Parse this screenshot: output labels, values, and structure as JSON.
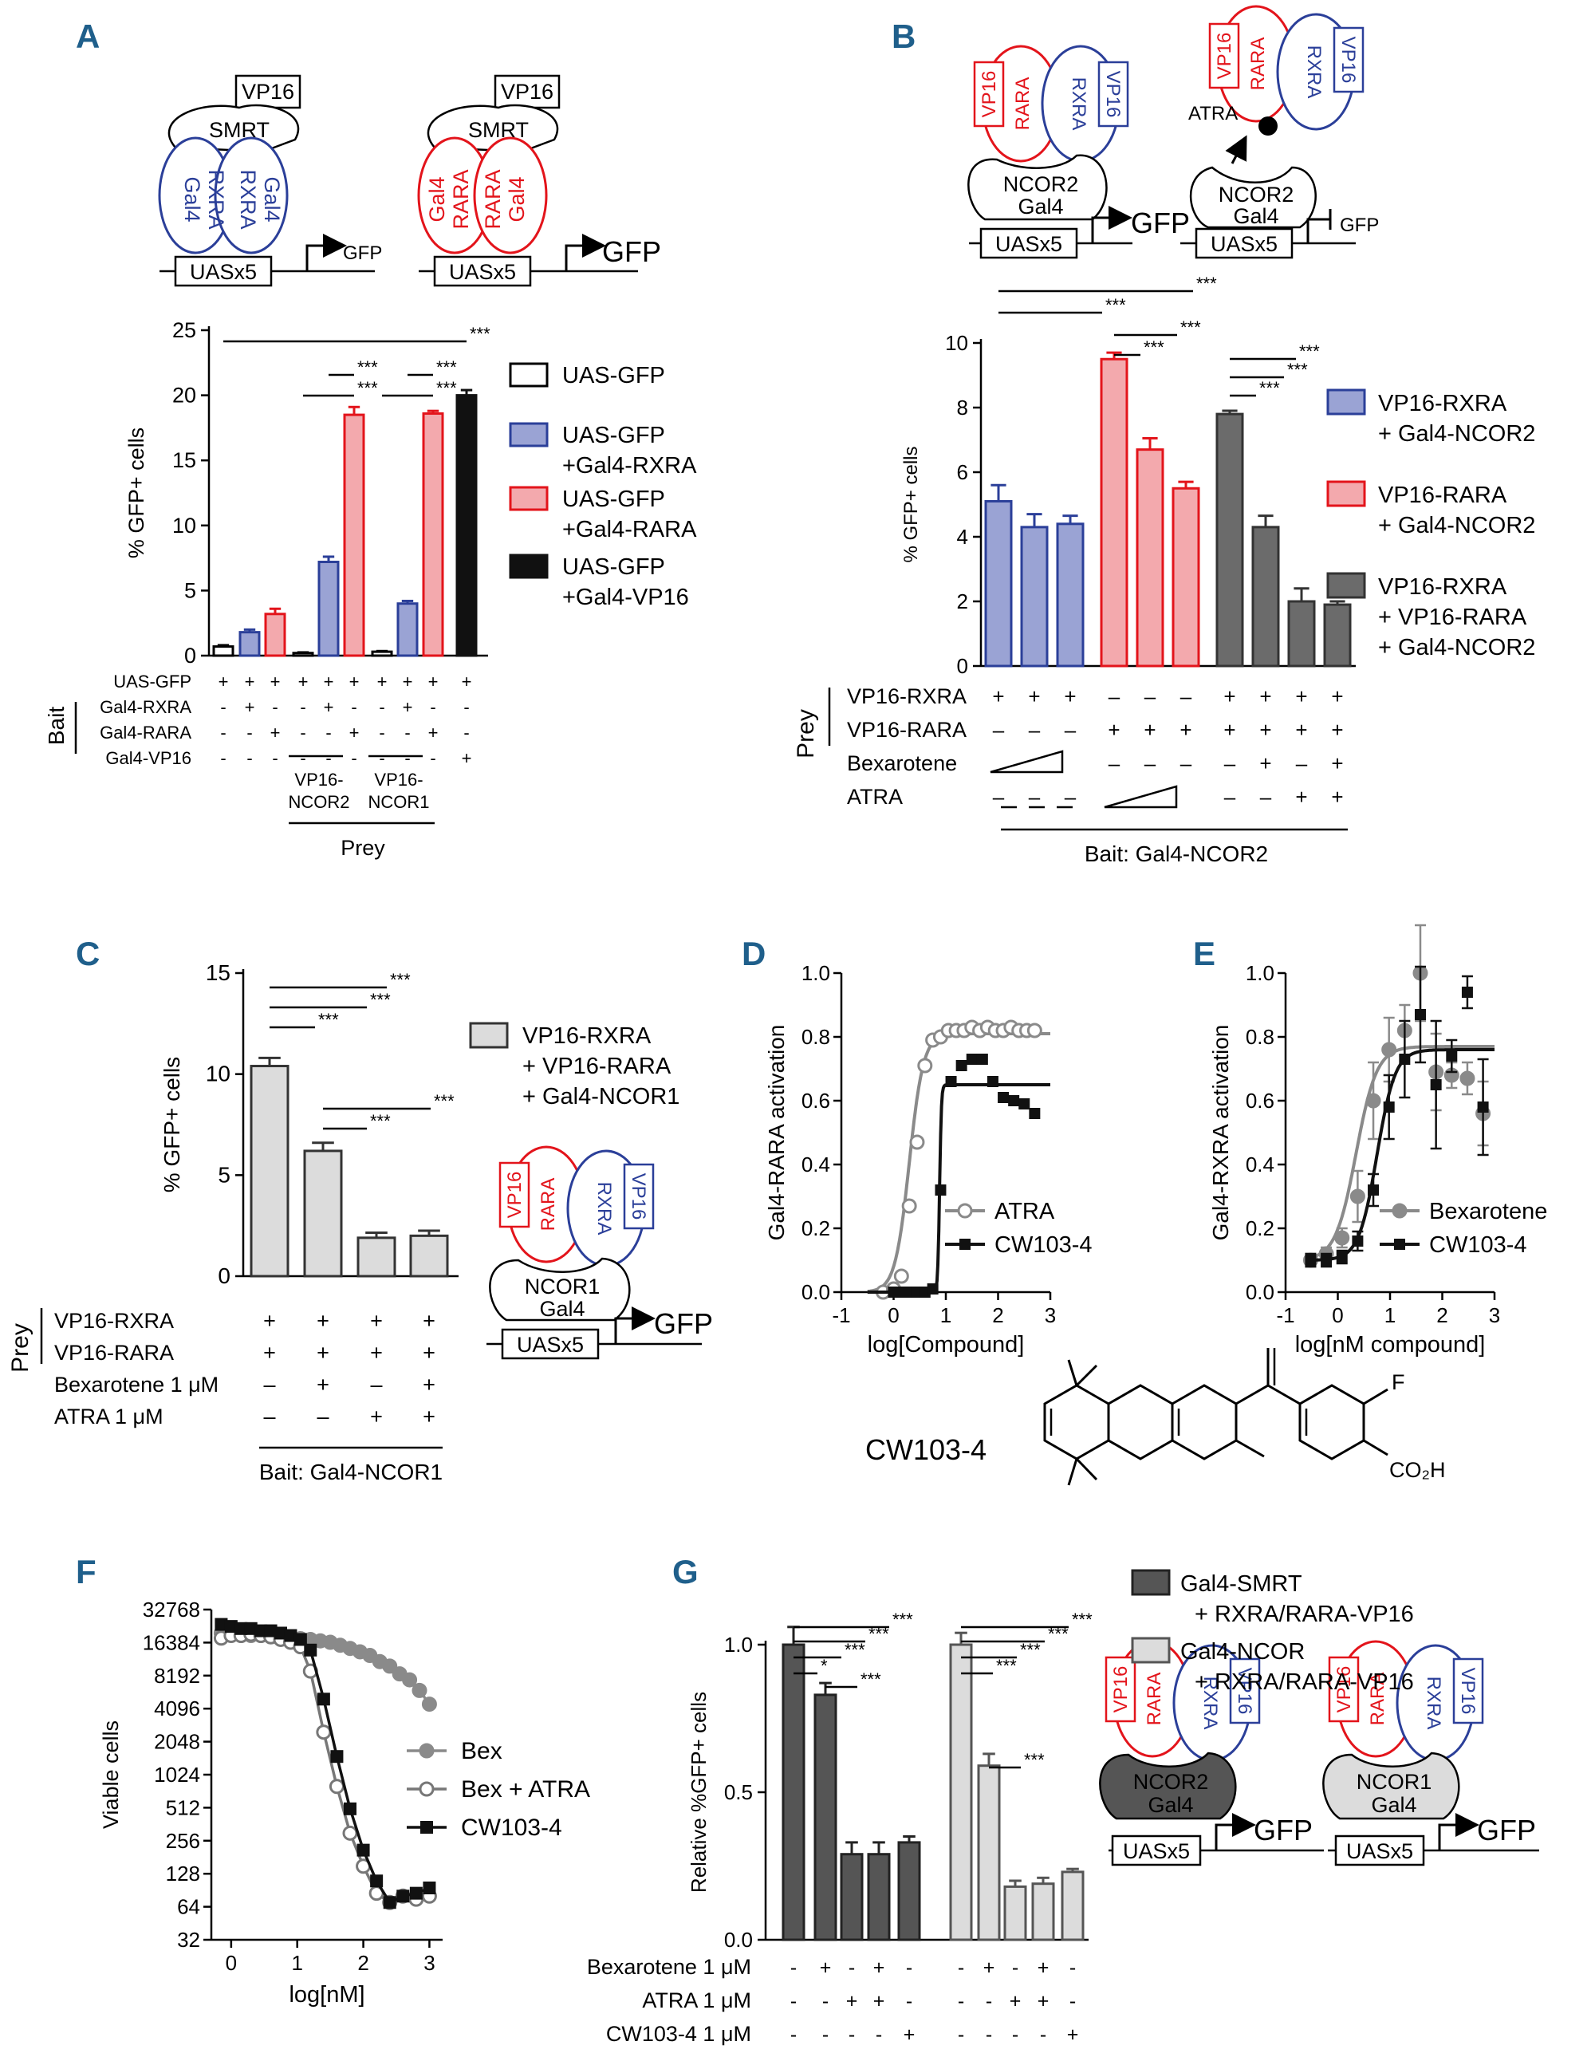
{
  "panel_labels": [
    "A",
    "B",
    "C",
    "D",
    "E",
    "F",
    "G"
  ],
  "diagram_text": {
    "vp16": "VP16",
    "smrt": "SMRT",
    "gal4": "Gal4",
    "rxra": "RXRA",
    "rara": "RARA",
    "ncor2": "NCOR2",
    "ncor1": "NCOR1",
    "uas": "UASx5",
    "gfp": "GFP",
    "atra": "ATRA"
  },
  "sig": {
    "three": "***",
    "one": "*"
  },
  "colors": {
    "blue": "#2b3f99",
    "blue_fill": "#9aa3d4",
    "red": "#e3141b",
    "red_fill": "#f3a9ad",
    "black": "#111111",
    "dark_gray": "#6b6b6b",
    "mid_gray": "#8a8a8a",
    "light_gray": "#dcdcdc",
    "panel_label": "#1f5f8b"
  },
  "chart_data": [
    {
      "panel": "A",
      "type": "bar",
      "ylabel": "% GFP+ cells",
      "ylim": [
        0,
        25
      ],
      "yticks": [
        "0",
        "5",
        "10",
        "15",
        "20",
        "25"
      ],
      "values": [
        0.7,
        1.8,
        3.2,
        0.2,
        7.2,
        18.5,
        0.3,
        4.0,
        18.6,
        20.0
      ],
      "errors": [
        0.1,
        0.2,
        0.4,
        0.05,
        0.4,
        0.6,
        0.05,
        0.2,
        0.2,
        0.4
      ],
      "legend": [
        "UAS-GFP",
        "UAS-GFP\n+Gal4-RXRA",
        "UAS-GFP\n+Gal4-RARA",
        "UAS-GFP\n+Gal4-VP16"
      ],
      "row_labels": [
        "UAS-GFP",
        "Gal4-RXRA",
        "Gal4-RARA",
        "Gal4-VP16"
      ],
      "rows": [
        [
          "+",
          "+",
          "+",
          "+",
          "+",
          "+",
          "+",
          "+",
          "+",
          "+"
        ],
        [
          "-",
          "+",
          "-",
          "-",
          "+",
          "-",
          "-",
          "+",
          "-",
          "-"
        ],
        [
          "-",
          "-",
          "+",
          "-",
          "-",
          "+",
          "-",
          "-",
          "+",
          "-"
        ],
        [
          "-",
          "-",
          "-",
          "-",
          "-",
          "-",
          "-",
          "-",
          "-",
          "+"
        ]
      ],
      "bait_label": "Bait",
      "prey_groups": [
        "VP16-\nNCOR2",
        "VP16-\nNCOR1"
      ],
      "prey_label": "Prey"
    },
    {
      "panel": "B",
      "type": "bar",
      "ylabel": "% GFP+ cells",
      "ylim": [
        0,
        10
      ],
      "yticks": [
        "0",
        "2",
        "4",
        "6",
        "8",
        "10"
      ],
      "values": [
        5.1,
        4.3,
        4.4,
        9.5,
        6.7,
        5.5,
        7.8,
        4.3,
        2.0,
        1.9
      ],
      "errors": [
        0.5,
        0.4,
        0.25,
        0.2,
        0.35,
        0.2,
        0.1,
        0.35,
        0.4,
        0.1
      ],
      "legend": [
        "VP16-RXRA\n+ Gal4-NCOR2",
        "VP16-RARA\n+ Gal4-NCOR2",
        "VP16-RXRA\n+ VP16-RARA\n+ Gal4-NCOR2"
      ],
      "row_labels": [
        "VP16-RXRA",
        "VP16-RARA",
        "Bexarotene",
        "ATRA"
      ],
      "rows": [
        [
          "+",
          "+",
          "+",
          "–",
          "–",
          "–",
          "+",
          "+",
          "+",
          "+"
        ],
        [
          "–",
          "–",
          "–",
          "+",
          "+",
          "+",
          "+",
          "+",
          "+",
          "+"
        ],
        [
          "",
          "",
          "",
          "–",
          "–",
          "–",
          "–",
          "+",
          "–",
          "+"
        ],
        [
          "–",
          "–",
          "–",
          "",
          "",
          "",
          "–",
          "–",
          "+",
          "+"
        ]
      ],
      "prey_label": "Prey",
      "bait_text": "Bait: Gal4-NCOR2"
    },
    {
      "panel": "C",
      "type": "bar",
      "ylabel": "% GFP+ cells",
      "ylim": [
        0,
        15
      ],
      "yticks": [
        "0",
        "5",
        "10",
        "15"
      ],
      "values": [
        10.4,
        6.2,
        1.9,
        2.0
      ],
      "errors": [
        0.4,
        0.4,
        0.25,
        0.25
      ],
      "legend": [
        "VP16-RXRA\n+ VP16-RARA\n+ Gal4-NCOR1"
      ],
      "row_labels": [
        "VP16-RXRA",
        "VP16-RARA",
        "Bexarotene 1 μM",
        "ATRA 1 μM"
      ],
      "rows": [
        [
          "+",
          "+",
          "+",
          "+"
        ],
        [
          "+",
          "+",
          "+",
          "+"
        ],
        [
          "–",
          "+",
          "–",
          "+"
        ],
        [
          "–",
          "–",
          "+",
          "+"
        ]
      ],
      "prey_label": "Prey",
      "bait_text": "Bait: Gal4-NCOR1"
    },
    {
      "panel": "D",
      "type": "scatter",
      "ylabel": "Gal4-RARA activation",
      "xlabel": "log[Compound]",
      "xlim": [
        -1,
        3
      ],
      "ylim": [
        0,
        1.0
      ],
      "xticks": [
        "-1",
        "0",
        "1",
        "2",
        "3"
      ],
      "yticks": [
        "0.0",
        "0.2",
        "0.4",
        "0.6",
        "0.8",
        "1.0"
      ],
      "series": [
        {
          "name": "ATRA",
          "x": [
            -0.2,
            0.0,
            0.15,
            0.3,
            0.45,
            0.6,
            0.75,
            0.9,
            1.05,
            1.2,
            1.35,
            1.5,
            1.65,
            1.8,
            1.95,
            2.1,
            2.25,
            2.4,
            2.55,
            2.7
          ],
          "y": [
            0.0,
            0.01,
            0.05,
            0.27,
            0.47,
            0.71,
            0.79,
            0.8,
            0.82,
            0.82,
            0.82,
            0.83,
            0.82,
            0.83,
            0.82,
            0.82,
            0.83,
            0.82,
            0.82,
            0.82
          ],
          "curve": {
            "bottom": 0.0,
            "top": 0.81,
            "logec50": 0.3,
            "hill": 3.2
          }
        },
        {
          "name": "CW103-4",
          "x": [
            0.0,
            0.15,
            0.3,
            0.45,
            0.6,
            0.75,
            0.9,
            1.1,
            1.3,
            1.5,
            1.7,
            1.9,
            2.1,
            2.3,
            2.5,
            2.7
          ],
          "y": [
            0.0,
            0.0,
            0.0,
            0.0,
            0.0,
            0.01,
            0.32,
            0.66,
            0.71,
            0.73,
            0.73,
            0.66,
            0.61,
            0.6,
            0.59,
            0.56
          ],
          "curve": {
            "bottom": 0.0,
            "top": 0.65,
            "logec50": 0.88,
            "hill": 25
          }
        }
      ]
    },
    {
      "panel": "E",
      "type": "scatter",
      "ylabel": "Gal4-RXRA activation",
      "xlabel": "log[nM compound]",
      "xlim": [
        -1,
        3
      ],
      "ylim": [
        0,
        1.0
      ],
      "xticks": [
        "-1",
        "0",
        "1",
        "2",
        "3"
      ],
      "yticks": [
        "0.0",
        "0.2",
        "0.4",
        "0.6",
        "0.8",
        "1.0"
      ],
      "series": [
        {
          "name": "Bexarotene",
          "x": [
            -0.52,
            -0.22,
            0.08,
            0.38,
            0.68,
            0.98,
            1.28,
            1.58,
            1.88,
            2.18,
            2.48,
            2.78
          ],
          "y": [
            0.1,
            0.12,
            0.17,
            0.3,
            0.6,
            0.76,
            0.82,
            1.0,
            0.69,
            0.68,
            0.67,
            0.56
          ],
          "err": [
            0.02,
            0.02,
            0.03,
            0.08,
            0.12,
            0.1,
            0.08,
            0.15,
            0.12,
            0.04,
            0.05,
            0.1
          ],
          "curve": {
            "bottom": 0.1,
            "top": 0.77,
            "logec50": 0.35,
            "hill": 2.2
          }
        },
        {
          "name": "CW103-4",
          "x": [
            -0.52,
            -0.22,
            0.08,
            0.38,
            0.68,
            0.98,
            1.28,
            1.58,
            1.88,
            2.18,
            2.48,
            2.78
          ],
          "y": [
            0.1,
            0.1,
            0.11,
            0.16,
            0.32,
            0.58,
            0.73,
            0.87,
            0.65,
            0.74,
            0.94,
            0.58
          ],
          "err": [
            0.02,
            0.02,
            0.02,
            0.03,
            0.05,
            0.1,
            0.12,
            0.15,
            0.2,
            0.05,
            0.05,
            0.15
          ],
          "curve": {
            "bottom": 0.1,
            "top": 0.76,
            "logec50": 0.75,
            "hill": 2.5
          }
        }
      ]
    },
    {
      "panel": "F",
      "type": "line",
      "ylabel": "Viable cells",
      "xlabel": "log[nM]",
      "xlim": [
        -0.3,
        3.2
      ],
      "ylim_log2": [
        5,
        15
      ],
      "xticks": [
        "0",
        "1",
        "2",
        "3"
      ],
      "yticks": [
        "32768",
        "16384",
        "8192",
        "4096",
        "2048",
        "1024",
        "512",
        "256",
        "128",
        "64",
        "32"
      ],
      "series": [
        {
          "name": "Bex",
          "x": [
            -0.15,
            0.0,
            0.15,
            0.3,
            0.45,
            0.6,
            0.75,
            0.9,
            1.05,
            1.2,
            1.35,
            1.5,
            1.65,
            1.8,
            1.95,
            2.1,
            2.25,
            2.4,
            2.55,
            2.7,
            2.85,
            3.0
          ],
          "y": [
            20000,
            19500,
            19000,
            19000,
            19000,
            18500,
            18000,
            18000,
            17800,
            17500,
            17000,
            16500,
            15500,
            14500,
            13500,
            12500,
            11000,
            10000,
            8500,
            7500,
            6000,
            4500
          ]
        },
        {
          "name": "Bex + ATRA",
          "x": [
            -0.15,
            0.0,
            0.15,
            0.3,
            0.45,
            0.6,
            0.75,
            0.9,
            1.05,
            1.2,
            1.4,
            1.6,
            1.8,
            2.0,
            2.2,
            2.4,
            2.6,
            2.8,
            3.0
          ],
          "y": [
            18000,
            19000,
            19000,
            19500,
            19000,
            18500,
            17500,
            16500,
            15000,
            9000,
            2500,
            800,
            300,
            150,
            85,
            70,
            80,
            75,
            80
          ]
        },
        {
          "name": "CW103-4",
          "x": [
            -0.15,
            0.0,
            0.15,
            0.3,
            0.45,
            0.6,
            0.75,
            0.9,
            1.05,
            1.2,
            1.4,
            1.6,
            1.8,
            2.0,
            2.2,
            2.4,
            2.6,
            2.8,
            3.0
          ],
          "y": [
            24000,
            23000,
            22000,
            22000,
            21000,
            21000,
            20000,
            19000,
            17500,
            14000,
            5000,
            1500,
            500,
            210,
            110,
            70,
            80,
            85,
            95
          ]
        }
      ]
    },
    {
      "panel": "G",
      "type": "bar",
      "ylabel": "Relative %GFP+ cells",
      "ylim": [
        0,
        1.0
      ],
      "yticks": [
        "0.0",
        "0.5",
        "1.0"
      ],
      "values": [
        1.0,
        0.83,
        0.29,
        0.29,
        0.33,
        1.0,
        0.59,
        0.18,
        0.19,
        0.23
      ],
      "errors": [
        0.06,
        0.04,
        0.04,
        0.04,
        0.02,
        0.04,
        0.04,
        0.02,
        0.02,
        0.01
      ],
      "legend": [
        "Gal4-SMRT\n+ RXRA/RARA-VP16",
        "Gal4-NCOR\n+ RXRA/RARA-VP16"
      ],
      "row_labels": [
        "Bexarotene 1 μM",
        "ATRA 1 μM",
        "CW103-4 1 μM"
      ],
      "rows": [
        [
          "-",
          "+",
          "-",
          "+",
          "-",
          "-",
          "+",
          "-",
          "+",
          "-"
        ],
        [
          "-",
          "-",
          "+",
          "+",
          "-",
          "-",
          "-",
          "+",
          "+",
          "-"
        ],
        [
          "-",
          "-",
          "-",
          "-",
          "+",
          "-",
          "-",
          "-",
          "-",
          "+"
        ]
      ]
    }
  ],
  "compound": {
    "name": "CW103-4",
    "substituent_f": "F",
    "substituent_acid": "CO₂H"
  }
}
